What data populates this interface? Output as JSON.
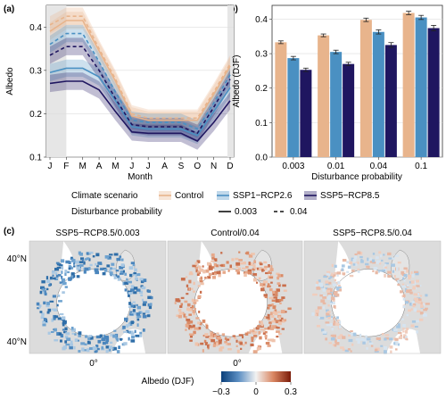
{
  "chart_data": [
    {
      "panel": "(a)",
      "type": "line",
      "xlabel": "Month",
      "ylabel": "Albedo",
      "categories": [
        "J",
        "F",
        "M",
        "A",
        "M",
        "J",
        "J",
        "A",
        "S",
        "O",
        "N",
        "D"
      ],
      "yticks": [
        "0.1",
        "0.2",
        "0.3",
        "0.4"
      ],
      "ylim": [
        0.1,
        0.45
      ],
      "shaded_months": [
        "J",
        "F",
        "D"
      ],
      "grid": true,
      "series": [
        {
          "scenario": "Control",
          "probability": "0.04",
          "color": "#e8b48c",
          "dash": true,
          "values": [
            0.405,
            0.425,
            0.425,
            0.35,
            0.28,
            0.2,
            0.19,
            0.19,
            0.19,
            0.19,
            0.25,
            0.315
          ],
          "band": 0.02
        },
        {
          "scenario": "Control",
          "probability": "0.003",
          "color": "#e8b48c",
          "dash": false,
          "values": [
            0.39,
            0.415,
            0.415,
            0.345,
            0.275,
            0.195,
            0.185,
            0.185,
            0.185,
            0.185,
            0.245,
            0.31
          ],
          "band": 0.02
        },
        {
          "scenario": "SSP1-RCP2.6",
          "probability": "0.04",
          "color": "#4a90c2",
          "dash": true,
          "values": [
            0.36,
            0.385,
            0.385,
            0.32,
            0.25,
            0.185,
            0.18,
            0.18,
            0.18,
            0.165,
            0.225,
            0.29
          ],
          "band": 0.02
        },
        {
          "scenario": "SSP1-RCP2.6",
          "probability": "0.003",
          "color": "#4a90c2",
          "dash": false,
          "values": [
            0.295,
            0.305,
            0.305,
            0.285,
            0.23,
            0.17,
            0.165,
            0.165,
            0.165,
            0.15,
            0.205,
            0.26
          ],
          "band": 0.02
        },
        {
          "scenario": "SSP5-RCP8.5",
          "probability": "0.04",
          "color": "#1f1660",
          "dash": true,
          "values": [
            0.335,
            0.355,
            0.355,
            0.3,
            0.235,
            0.175,
            0.17,
            0.17,
            0.17,
            0.155,
            0.215,
            0.28
          ],
          "band": 0.02
        },
        {
          "scenario": "SSP5-RCP8.5",
          "probability": "0.003",
          "color": "#1f1660",
          "dash": false,
          "values": [
            0.27,
            0.275,
            0.275,
            0.255,
            0.205,
            0.158,
            0.155,
            0.155,
            0.155,
            0.137,
            0.18,
            0.23
          ],
          "band": 0.02
        }
      ]
    },
    {
      "panel": "(b)",
      "type": "bar",
      "xlabel": "Disturbance probability",
      "ylabel": "Albedo (DJF)",
      "categories": [
        "0.003",
        "0.01",
        "0.04",
        "0.1"
      ],
      "yticks": [
        "0.0",
        "0.1",
        "0.2",
        "0.3",
        "0.4"
      ],
      "ylim": [
        0,
        0.44
      ],
      "grid": true,
      "series": [
        {
          "name": "Control",
          "color": "#e8b48c",
          "values": [
            0.333,
            0.353,
            0.398,
            0.418
          ],
          "err": [
            0.004,
            0.004,
            0.005,
            0.005
          ]
        },
        {
          "name": "SSP1-RCP2.6",
          "color": "#4a90c2",
          "values": [
            0.287,
            0.305,
            0.363,
            0.405
          ],
          "err": [
            0.005,
            0.005,
            0.006,
            0.006
          ]
        },
        {
          "name": "SSP5-RCP8.5",
          "color": "#1f1660",
          "values": [
            0.253,
            0.27,
            0.325,
            0.374
          ],
          "err": [
            0.005,
            0.005,
            0.007,
            0.008
          ]
        }
      ]
    },
    {
      "panel": "(c)",
      "type": "heatmap",
      "maps": [
        {
          "title": "SSP5−RCP8.5/0.003",
          "tone": "blue"
        },
        {
          "title": "Control/0.04",
          "tone": "red"
        },
        {
          "title": "SSP5−RCP8.5/0.04",
          "tone": "mixed"
        }
      ],
      "lat_labels": [
        "40°N",
        "40°N"
      ],
      "lon_label": "0°",
      "colorbar": {
        "label": "Albedo (DJF)",
        "ticks": [
          "−0.3",
          "0",
          "0.3"
        ],
        "range": [
          -0.3,
          0.3
        ],
        "low": "#0a3f7a",
        "mid": "#f2f2f2",
        "high": "#7a1a08"
      }
    }
  ],
  "legend": {
    "scenario_title": "Climate scenario",
    "scenario_items": [
      {
        "label": "Control",
        "color": "#e8b48c"
      },
      {
        "label": "SSP1−RCP2.6",
        "color": "#4a90c2"
      },
      {
        "label": "SSP5−RCP8.5",
        "color": "#1f1660"
      }
    ],
    "probability_title": "Disturbance probability",
    "probability_items": [
      {
        "label": "0.003",
        "dash": false
      },
      {
        "label": "0.04",
        "dash": true
      }
    ]
  }
}
